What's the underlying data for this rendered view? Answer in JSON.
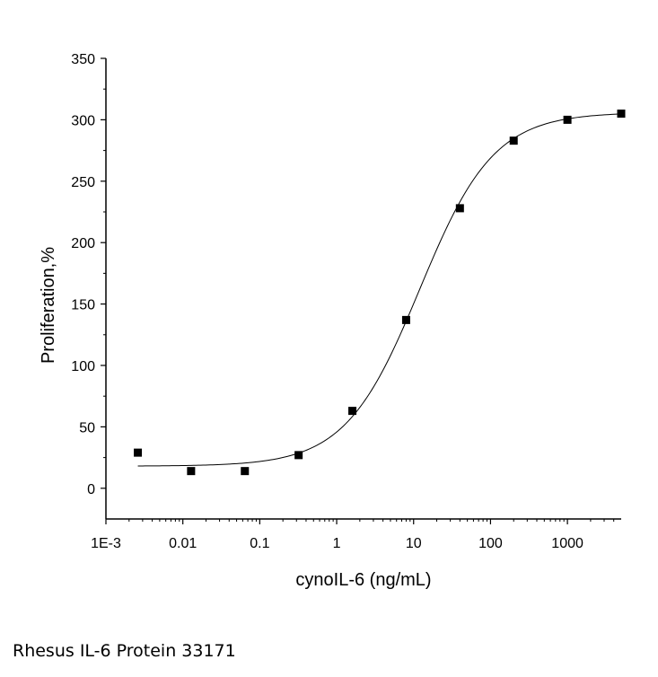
{
  "caption": "Rhesus IL-6 Protein 33171",
  "chart_data": {
    "type": "scatter",
    "xlabel": "cynoIL-6 (ng/mL)",
    "ylabel": "Proliferation,%",
    "x_scale": "log",
    "xlim": [
      0.001,
      5000
    ],
    "ylim": [
      -25,
      350
    ],
    "x_ticks": [
      {
        "value": 0.001,
        "label": "1E-3"
      },
      {
        "value": 0.01,
        "label": "0.01"
      },
      {
        "value": 0.1,
        "label": "0.1"
      },
      {
        "value": 1,
        "label": "1"
      },
      {
        "value": 10,
        "label": "10"
      },
      {
        "value": 100,
        "label": "100"
      },
      {
        "value": 1000,
        "label": "1000"
      }
    ],
    "y_ticks": [
      0,
      50,
      100,
      150,
      200,
      250,
      300,
      350
    ],
    "grid": false,
    "legend": "none",
    "series": [
      {
        "type": "scatter",
        "marker": "square",
        "x": [
          0.0026,
          0.0128,
          0.064,
          0.32,
          1.6,
          8,
          40,
          200,
          1000,
          5000
        ],
        "y": [
          29,
          14,
          14,
          27,
          63,
          137,
          228,
          283,
          300,
          305
        ]
      },
      {
        "type": "line",
        "fit": "logistic",
        "bottom": 18,
        "top": 306,
        "ec50": 12,
        "hill": 0.9,
        "x_range": [
          0.0026,
          5000
        ]
      }
    ]
  }
}
